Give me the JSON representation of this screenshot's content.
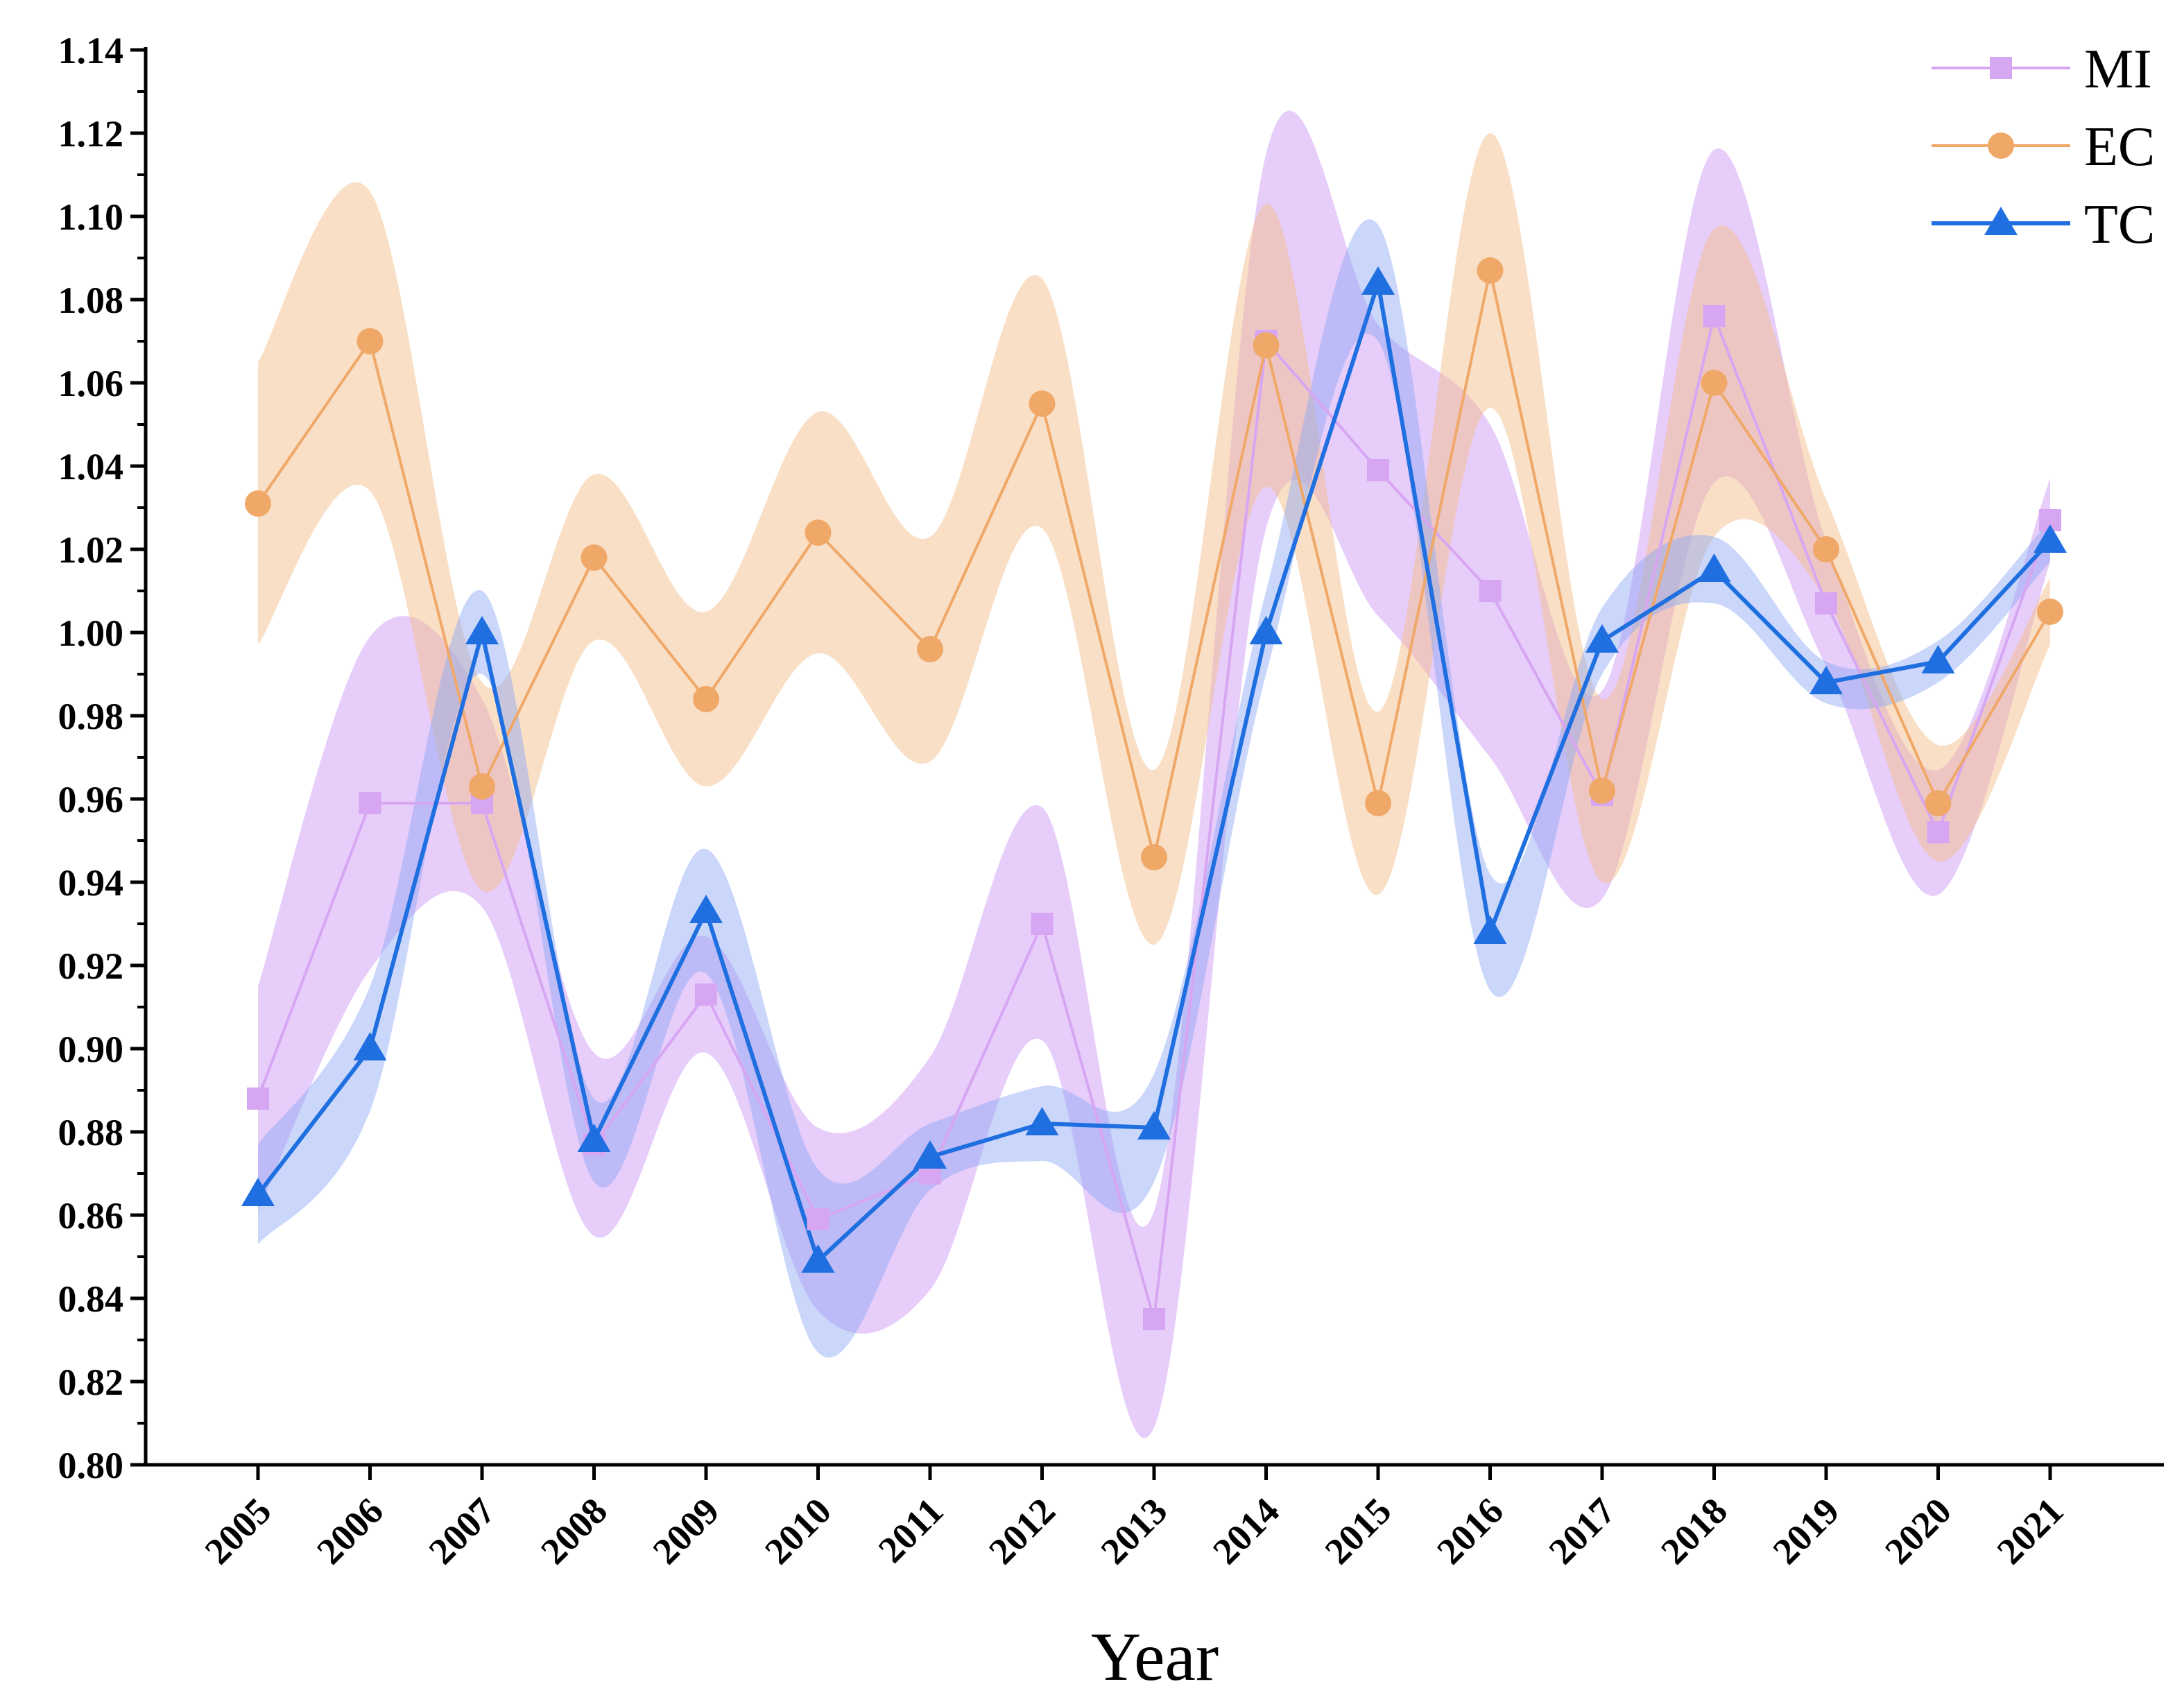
{
  "chart_data": {
    "type": "line",
    "title": "",
    "xlabel": "Year",
    "ylabel": "",
    "ylim": [
      0.8,
      1.14
    ],
    "ytick_step": 0.02,
    "yticks": [
      "0.80",
      "0.82",
      "0.84",
      "0.86",
      "0.88",
      "0.90",
      "0.92",
      "0.94",
      "0.96",
      "0.98",
      "1.00",
      "1.02",
      "1.04",
      "1.06",
      "1.08",
      "1.10",
      "1.12",
      "1.14"
    ],
    "categories": [
      "2005",
      "2006",
      "2007",
      "2008",
      "2009",
      "2010",
      "2011",
      "2012",
      "2013",
      "2014",
      "2015",
      "2016",
      "2017",
      "2018",
      "2019",
      "2020",
      "2021"
    ],
    "legend_position": "top-right",
    "series": [
      {
        "name": "MI",
        "marker": "square",
        "color": "#d7a6f2",
        "band_color": "#cf9cf5",
        "values": [
          0.888,
          0.959,
          0.959,
          0.877,
          0.913,
          0.859,
          0.87,
          0.93,
          0.835,
          1.07,
          1.039,
          1.01,
          0.961,
          1.076,
          1.007,
          0.952,
          1.027
        ],
        "band_width": [
          0.027,
          0.04,
          0.025,
          0.022,
          0.014,
          0.022,
          0.028,
          0.028,
          0.026,
          0.045,
          0.035,
          0.04,
          0.025,
          0.04,
          0.015,
          0.015,
          0.01
        ]
      },
      {
        "name": "EC",
        "marker": "circle",
        "color": "#f0a868",
        "band_color": "#f4bf8e",
        "values": [
          1.031,
          1.07,
          0.963,
          1.018,
          0.984,
          1.024,
          0.996,
          1.055,
          0.946,
          1.069,
          0.959,
          1.087,
          0.962,
          1.06,
          1.02,
          0.959,
          1.005
        ],
        "band_width": [
          0.034,
          0.036,
          0.025,
          0.02,
          0.021,
          0.029,
          0.027,
          0.03,
          0.021,
          0.034,
          0.022,
          0.033,
          0.022,
          0.037,
          0.012,
          0.014,
          0.008
        ]
      },
      {
        "name": "TC",
        "marker": "triangle",
        "color": "#1f6fe0",
        "band_color": "#8aa7f5",
        "values": [
          0.865,
          0.9,
          1.0,
          0.878,
          0.933,
          0.849,
          0.874,
          0.882,
          0.881,
          1.0,
          1.084,
          0.928,
          0.998,
          1.015,
          0.988,
          0.993,
          1.022
        ],
        "band_width": [
          0.012,
          0.015,
          0.01,
          0.01,
          0.015,
          0.022,
          0.008,
          0.009,
          0.013,
          0.01,
          0.014,
          0.014,
          0.008,
          0.008,
          0.005,
          0.005,
          0.005
        ]
      }
    ]
  }
}
